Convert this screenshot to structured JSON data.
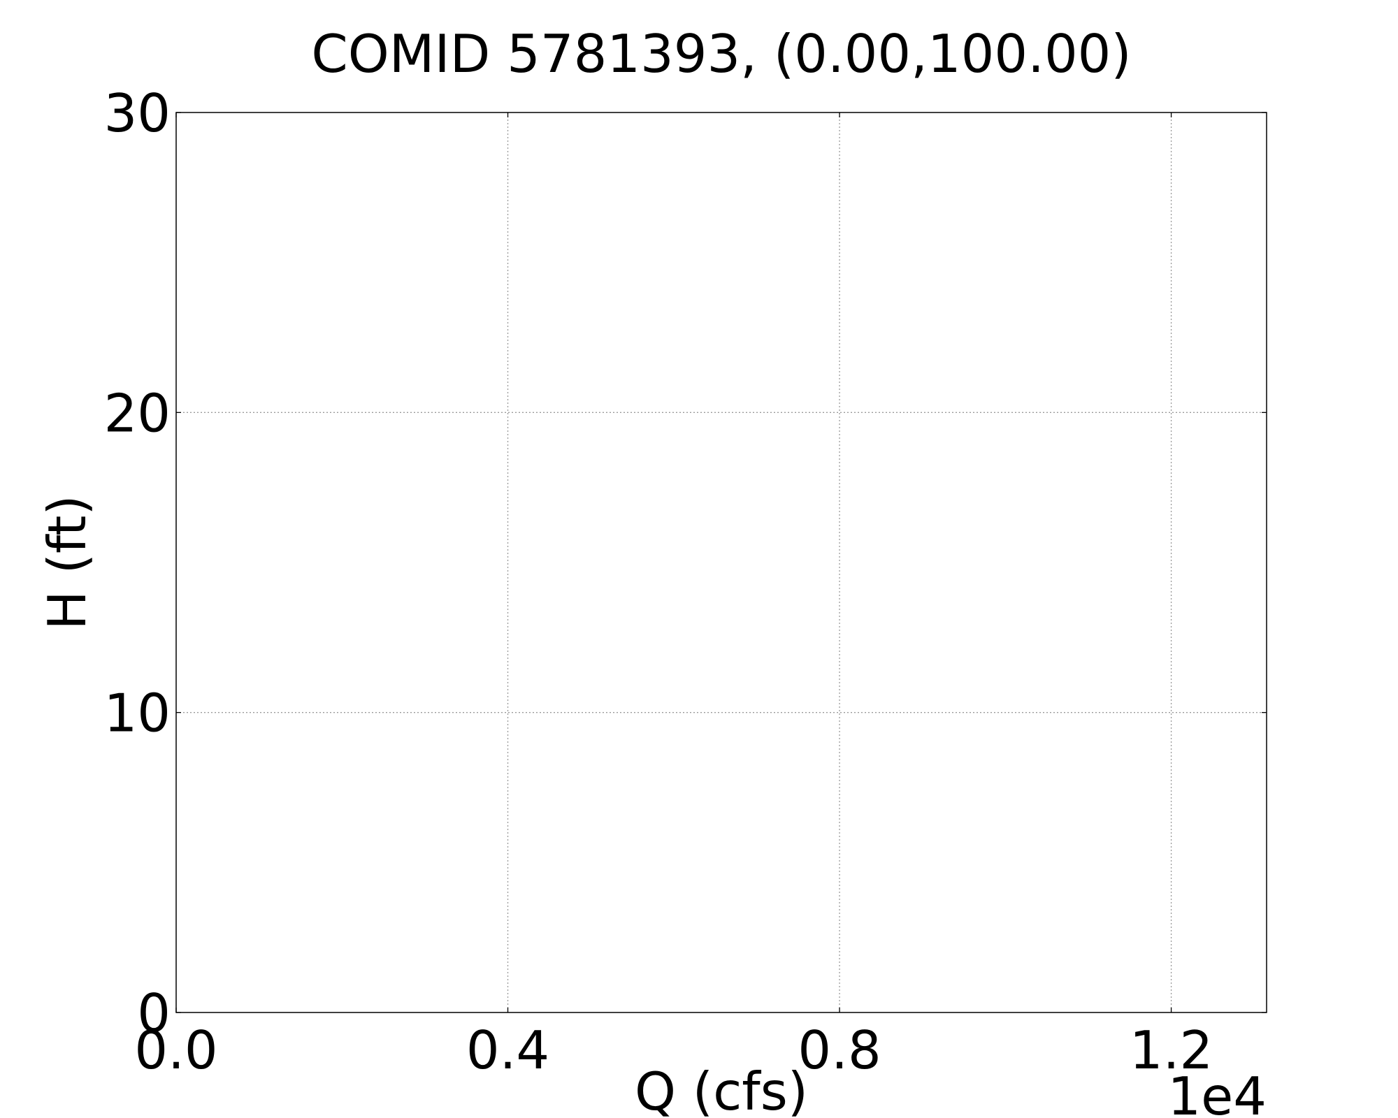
{
  "chart_data": {
    "type": "line",
    "title": "COMID 5781393, (0.00,100.00)",
    "xlabel": "Q (cfs)",
    "ylabel": "H (ft)",
    "xlim": [
      0,
      13150
    ],
    "ylim": [
      0,
      30
    ],
    "x_ticks": [
      {
        "value": 0,
        "label": "0.0"
      },
      {
        "value": 4000,
        "label": "0.4"
      },
      {
        "value": 8000,
        "label": "0.8"
      },
      {
        "value": 12000,
        "label": "1.2"
      }
    ],
    "y_ticks": [
      {
        "value": 0,
        "label": "0"
      },
      {
        "value": 10,
        "label": "10"
      },
      {
        "value": 20,
        "label": "20"
      },
      {
        "value": 30,
        "label": "30"
      }
    ],
    "x_offset_text": "1e4",
    "grid": true,
    "series": []
  }
}
